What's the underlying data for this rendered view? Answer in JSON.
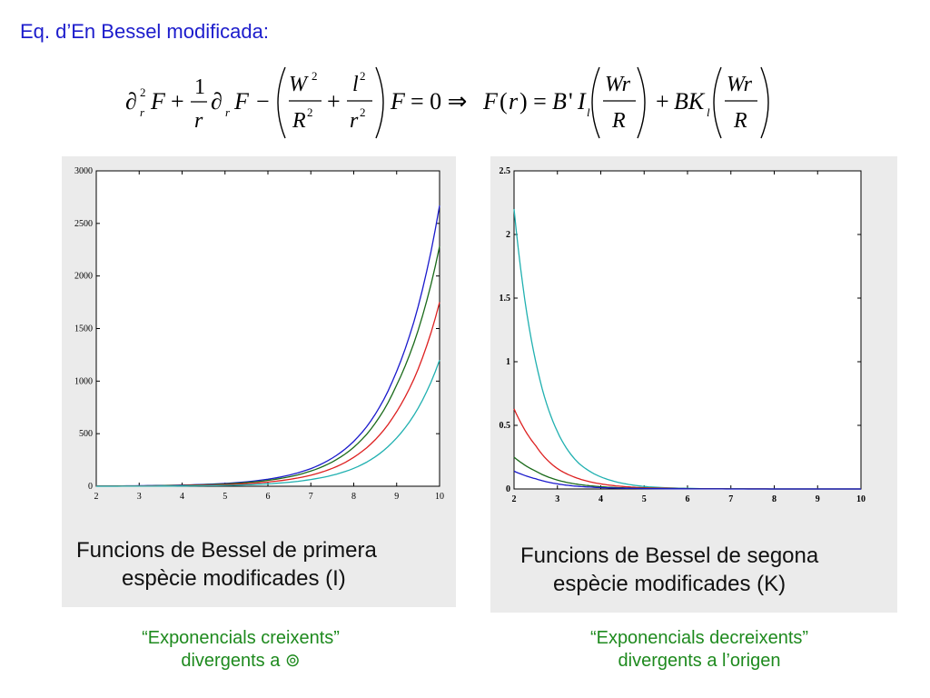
{
  "heading": "Eq. d’En Bessel modificada:",
  "colors": {
    "heading": "#1c1ccc",
    "note": "#1e8a1e",
    "panel_bg": "#ebebeb",
    "series": [
      "#1a1acc",
      "#1a6a1a",
      "#dd2020",
      "#20b0b0"
    ]
  },
  "left_panel": {
    "caption_line1": "Funcions de Bessel de primera",
    "caption_line2": "espècie modificades (I)"
  },
  "right_panel": {
    "caption_line1": "Funcions de Bessel de segona",
    "caption_line2": "espècie modificades (K)"
  },
  "notes": {
    "left_line1": "“Exponencials creixents”",
    "left_line2": "divergents a ⊚",
    "right_line1": "“Exponencials decreixents”",
    "right_line2": "divergents a l’origen"
  },
  "chart_data": [
    {
      "type": "line",
      "title": "",
      "xlabel": "",
      "ylabel": "",
      "xlim": [
        2,
        10
      ],
      "ylim": [
        0,
        3000
      ],
      "x_ticks": [
        "2",
        "3",
        "4",
        "5",
        "6",
        "7",
        "8",
        "9",
        "10"
      ],
      "y_ticks": [
        "0",
        "500",
        "1000",
        "1500",
        "2000",
        "2500",
        "3000"
      ],
      "grid": false,
      "x": [
        2,
        3,
        4,
        5,
        6,
        7,
        8,
        9,
        10
      ],
      "series": [
        {
          "color": "#1a1acc",
          "values": [
            2.3,
            5,
            11,
            27,
            67,
            168,
            427,
            1094,
            2671
          ]
        },
        {
          "color": "#1a6a1a",
          "values": [
            1.4,
            3.5,
            9,
            22,
            56,
            144,
            371,
            964,
            2282
          ]
        },
        {
          "color": "#dd2020",
          "values": [
            0.7,
            2,
            5.5,
            15,
            40,
            105,
            275,
            710,
            1750
          ]
        },
        {
          "color": "#20b0b0",
          "values": [
            0.2,
            0.8,
            2.6,
            8,
            23,
            64,
            170,
            460,
            1200
          ]
        }
      ]
    },
    {
      "type": "line",
      "title": "",
      "xlabel": "",
      "ylabel": "",
      "xlim": [
        2,
        10
      ],
      "ylim": [
        0,
        2.5
      ],
      "x_ticks": [
        "2",
        "3",
        "4",
        "5",
        "6",
        "7",
        "8",
        "9",
        "10"
      ],
      "y_ticks": [
        "0",
        "0.5",
        "1",
        "1.5",
        "2",
        "2.5"
      ],
      "grid": false,
      "x": [
        2,
        2.5,
        3,
        3.5,
        4,
        4.5,
        5,
        6,
        7,
        8,
        9,
        10
      ],
      "series": [
        {
          "color": "#20b0b0",
          "values": [
            2.2,
            1.0,
            0.45,
            0.2,
            0.095,
            0.045,
            0.02,
            0.005,
            0.001,
            0.0003,
            0.0001,
            0
          ]
        },
        {
          "color": "#dd2020",
          "values": [
            0.63,
            0.34,
            0.16,
            0.08,
            0.04,
            0.02,
            0.01,
            0.003,
            0.001,
            0.0003,
            0.0001,
            0
          ]
        },
        {
          "color": "#1a6a1a",
          "values": [
            0.25,
            0.14,
            0.07,
            0.035,
            0.018,
            0.009,
            0.005,
            0.0015,
            0.0005,
            0.0002,
            0.0001,
            0
          ]
        },
        {
          "color": "#1a1acc",
          "values": [
            0.14,
            0.08,
            0.04,
            0.02,
            0.011,
            0.006,
            0.003,
            0.001,
            0.0003,
            0.0001,
            0,
            0
          ]
        }
      ]
    }
  ]
}
